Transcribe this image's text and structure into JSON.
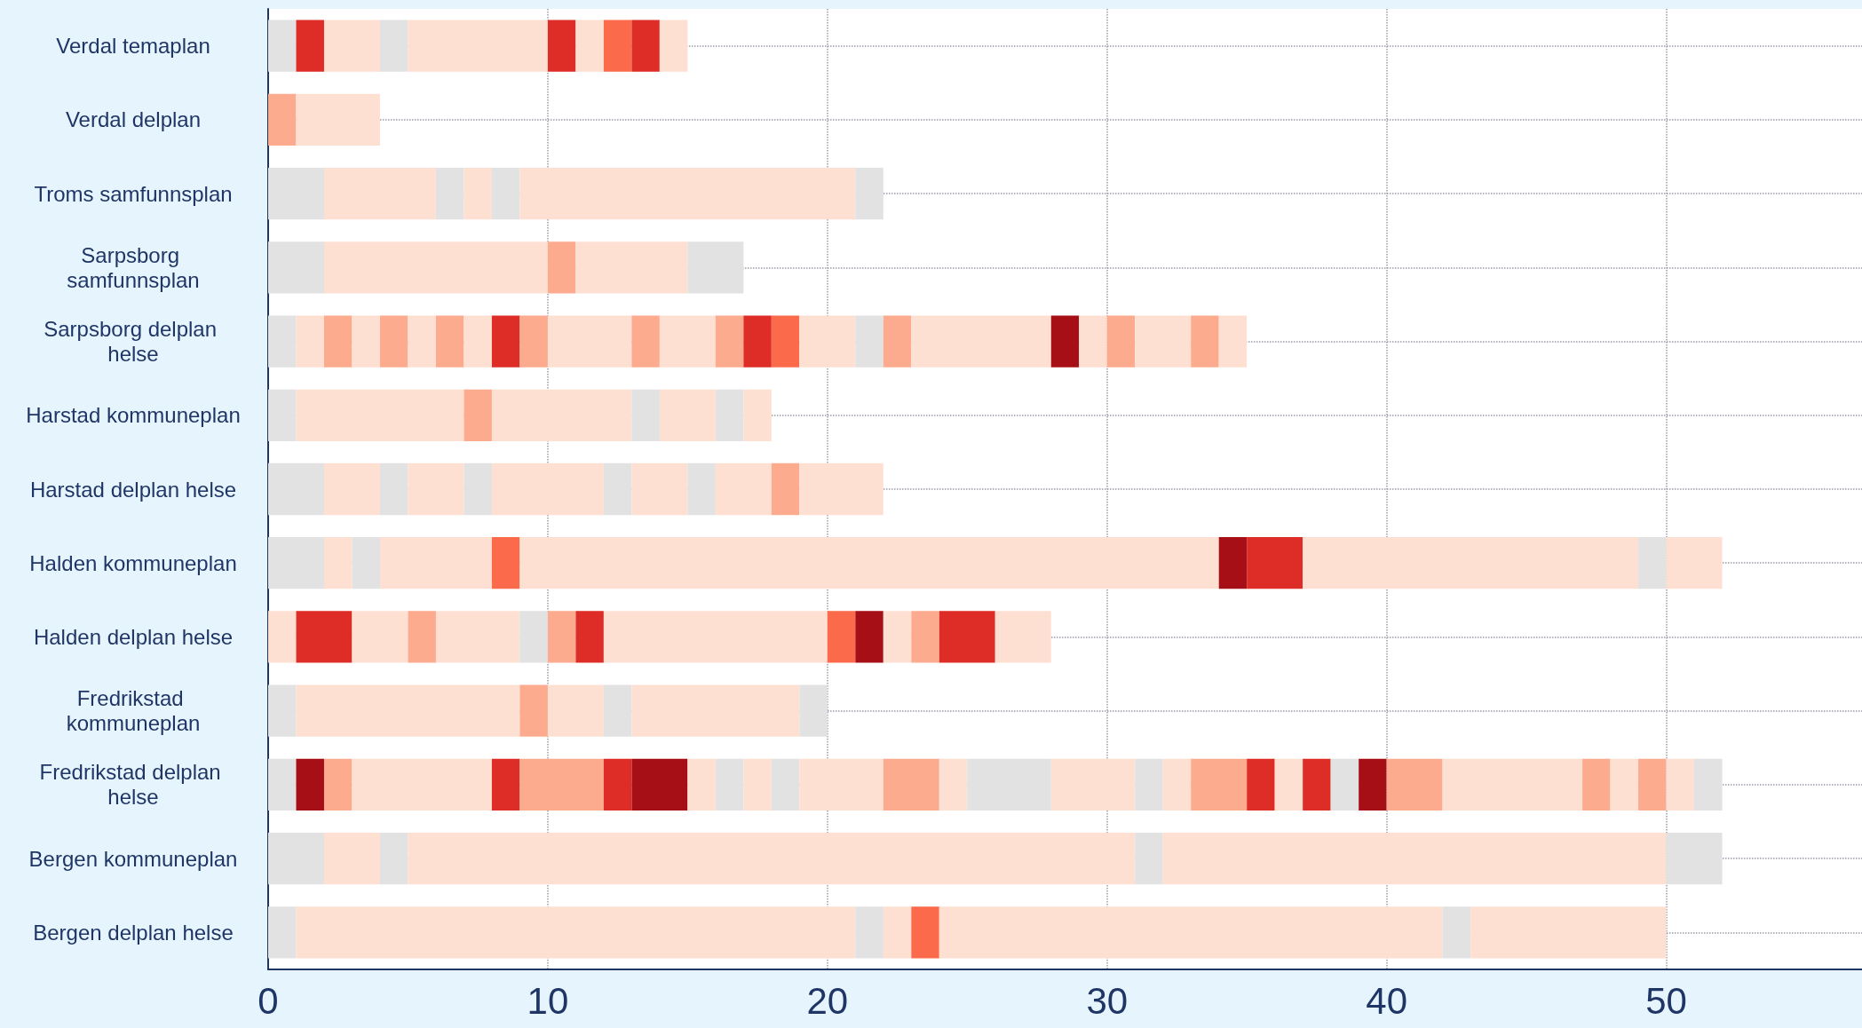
{
  "chart_data": {
    "type": "bar",
    "orientation": "horizontal",
    "stacked": true,
    "grid": true,
    "categories": [
      "Verdal temaplan",
      "Verdal delplan",
      "Troms samfunnsplan",
      "Sarpsborg samfunnsplan",
      "Sarpsborg delplan helse",
      "Harstad kommuneplan",
      "Harstad delplan helse",
      "Halden kommuneplan",
      "Halden delplan helse",
      "Fredrikstad kommuneplan",
      "Fredrikstad delplan helse",
      "Bergen kommuneplan",
      "Bergen delplan helse"
    ],
    "xlim": [
      0,
      57
    ],
    "xticks": [
      0,
      10,
      20,
      30,
      40,
      50
    ],
    "series": [
      {
        "values": [
          1,
          1,
          2,
          2,
          1,
          1,
          2,
          2,
          1,
          1,
          1,
          2,
          1
        ],
        "colors": [
          "#e2e2e2",
          "#fcab8f",
          "#e2e2e2",
          "#e2e2e2",
          "#e2e2e2",
          "#e2e2e2",
          "#e2e2e2",
          "#e2e2e2",
          "#fee0d2",
          "#e2e2e2",
          "#e2e2e2",
          "#e2e2e2",
          "#e2e2e2"
        ]
      },
      {
        "values": [
          1,
          3,
          4,
          8,
          1,
          6,
          2,
          1,
          2,
          8,
          1,
          2,
          20
        ],
        "colors": [
          "#de2d26",
          "#fee0d2",
          "#fee0d2",
          "#fee0d2",
          "#fee0d2",
          "#fee0d2",
          "#fee0d2",
          "#fee0d2",
          "#de2d26",
          "#fee0d2",
          "#a50f15",
          "#fee0d2",
          "#fee0d2"
        ]
      },
      {
        "values": [
          2,
          null,
          1,
          1,
          1,
          1,
          1,
          1,
          2,
          1,
          1,
          1,
          1
        ],
        "colors": [
          "#fee0d2",
          null,
          "#e2e2e2",
          "#fcab8f",
          "#fcab8f",
          "#fcab8f",
          "#e2e2e2",
          "#e2e2e2",
          "#fee0d2",
          "#fcab8f",
          "#fcab8f",
          "#e2e2e2",
          "#e2e2e2"
        ]
      },
      {
        "values": [
          1,
          null,
          1,
          4,
          1,
          5,
          2,
          4,
          1,
          2,
          5,
          26,
          1
        ],
        "colors": [
          "#e2e2e2",
          null,
          "#fee0d2",
          "#fee0d2",
          "#fee0d2",
          "#fee0d2",
          "#fee0d2",
          "#fee0d2",
          "#fcab8f",
          "#fee0d2",
          "#fee0d2",
          "#fee0d2",
          "#fee0d2"
        ]
      },
      {
        "values": [
          5,
          null,
          1,
          2,
          1,
          1,
          1,
          1,
          3,
          1,
          1,
          1,
          1
        ],
        "colors": [
          "#fee0d2",
          null,
          "#e2e2e2",
          "#e2e2e2",
          "#fcab8f",
          "#e2e2e2",
          "#e2e2e2",
          "#fb6a4a",
          "#fee0d2",
          "#e2e2e2",
          "#de2d26",
          "#e2e2e2",
          "#fb6a4a"
        ]
      },
      {
        "values": [
          1,
          null,
          12,
          null,
          1,
          2,
          4,
          25,
          1,
          6,
          3,
          18,
          18
        ],
        "colors": [
          "#de2d26",
          null,
          "#fee0d2",
          null,
          "#fee0d2",
          "#fee0d2",
          "#fee0d2",
          "#fee0d2",
          "#e2e2e2",
          "#fee0d2",
          "#fcab8f",
          "#fee0d2",
          "#fee0d2"
        ]
      },
      {
        "values": [
          1,
          null,
          1,
          null,
          1,
          1,
          1,
          1,
          1,
          1,
          1,
          2,
          1
        ],
        "colors": [
          "#fee0d2",
          null,
          "#e2e2e2",
          null,
          "#fcab8f",
          "#e2e2e2",
          "#e2e2e2",
          "#a50f15",
          "#fcab8f",
          "#e2e2e2",
          "#de2d26",
          "#e2e2e2",
          "#e2e2e2"
        ]
      },
      {
        "values": [
          1,
          null,
          null,
          null,
          1,
          1,
          2,
          2,
          1,
          null,
          2,
          null,
          7
        ],
        "colors": [
          "#fb6a4a",
          null,
          null,
          null,
          "#fee0d2",
          "#fee0d2",
          "#fee0d2",
          "#de2d26",
          "#de2d26",
          null,
          "#a50f15",
          null,
          "#fee0d2"
        ]
      },
      {
        "values": [
          1,
          null,
          null,
          null,
          1,
          null,
          1,
          12,
          8,
          null,
          1,
          null,
          null
        ],
        "colors": [
          "#de2d26",
          null,
          null,
          null,
          "#de2d26",
          null,
          "#e2e2e2",
          "#fee0d2",
          "#fee0d2",
          null,
          "#fee0d2",
          null,
          null
        ]
      },
      {
        "values": [
          1,
          null,
          null,
          null,
          1,
          null,
          2,
          1,
          1,
          null,
          1,
          null,
          null
        ],
        "colors": [
          "#fee0d2",
          null,
          null,
          null,
          "#fcab8f",
          null,
          "#fee0d2",
          "#e2e2e2",
          "#fb6a4a",
          null,
          "#e2e2e2",
          null,
          null
        ]
      },
      {
        "values": [
          null,
          null,
          null,
          null,
          3,
          null,
          1,
          2,
          1,
          null,
          1,
          null,
          null
        ],
        "colors": [
          null,
          null,
          null,
          null,
          "#fee0d2",
          null,
          "#fcab8f",
          "#fee0d2",
          "#a50f15",
          null,
          "#fee0d2",
          null,
          null
        ]
      },
      {
        "values": [
          null,
          null,
          null,
          null,
          1,
          null,
          3,
          null,
          1,
          null,
          1,
          null,
          null
        ],
        "colors": [
          null,
          null,
          null,
          null,
          "#fcab8f",
          null,
          "#fee0d2",
          null,
          "#fee0d2",
          null,
          "#e2e2e2",
          null,
          null
        ]
      },
      {
        "values": [
          null,
          null,
          null,
          null,
          2,
          null,
          null,
          null,
          1,
          null,
          3,
          null,
          null
        ],
        "colors": [
          null,
          null,
          null,
          null,
          "#fee0d2",
          null,
          null,
          null,
          "#fcab8f",
          null,
          "#fee0d2",
          null,
          null
        ]
      },
      {
        "values": [
          null,
          null,
          null,
          null,
          1,
          null,
          null,
          null,
          2,
          null,
          2,
          null,
          null
        ],
        "colors": [
          null,
          null,
          null,
          null,
          "#fcab8f",
          null,
          null,
          null,
          "#de2d26",
          null,
          "#fcab8f",
          null,
          null
        ]
      },
      {
        "values": [
          null,
          null,
          null,
          null,
          1,
          null,
          null,
          null,
          2,
          null,
          1,
          null,
          null
        ],
        "colors": [
          null,
          null,
          null,
          null,
          "#de2d26",
          null,
          null,
          null,
          "#fee0d2",
          null,
          "#fee0d2",
          null,
          null
        ]
      },
      {
        "values": [
          null,
          null,
          null,
          null,
          1,
          null,
          null,
          null,
          null,
          null,
          3,
          null,
          null
        ],
        "colors": [
          null,
          null,
          null,
          null,
          "#fb6a4a",
          null,
          null,
          null,
          null,
          null,
          "#e2e2e2",
          null,
          null
        ]
      },
      {
        "values": [
          null,
          null,
          null,
          null,
          2,
          null,
          null,
          null,
          null,
          null,
          3,
          null,
          null
        ],
        "colors": [
          null,
          null,
          null,
          null,
          "#fee0d2",
          null,
          null,
          null,
          null,
          null,
          "#fee0d2",
          null,
          null
        ]
      },
      {
        "values": [
          null,
          null,
          null,
          null,
          1,
          null,
          null,
          null,
          null,
          null,
          1,
          null,
          null
        ],
        "colors": [
          null,
          null,
          null,
          null,
          "#e2e2e2",
          null,
          null,
          null,
          null,
          null,
          "#e2e2e2",
          null,
          null
        ]
      },
      {
        "values": [
          null,
          null,
          null,
          null,
          1,
          null,
          null,
          null,
          null,
          null,
          1,
          null,
          null
        ],
        "colors": [
          null,
          null,
          null,
          null,
          "#fcab8f",
          null,
          null,
          null,
          null,
          null,
          "#fee0d2",
          null,
          null
        ]
      },
      {
        "values": [
          null,
          null,
          null,
          null,
          5,
          null,
          null,
          null,
          null,
          null,
          2,
          null,
          null
        ],
        "colors": [
          null,
          null,
          null,
          null,
          "#fee0d2",
          null,
          null,
          null,
          null,
          null,
          "#fcab8f",
          null,
          null
        ]
      },
      {
        "values": [
          null,
          null,
          null,
          null,
          1,
          null,
          null,
          null,
          null,
          null,
          1,
          null,
          null
        ],
        "colors": [
          null,
          null,
          null,
          null,
          "#a50f15",
          null,
          null,
          null,
          null,
          null,
          "#de2d26",
          null,
          null
        ]
      },
      {
        "values": [
          null,
          null,
          null,
          null,
          1,
          null,
          null,
          null,
          null,
          null,
          1,
          null,
          null
        ],
        "colors": [
          null,
          null,
          null,
          null,
          "#fee0d2",
          null,
          null,
          null,
          null,
          null,
          "#fee0d2",
          null,
          null
        ]
      },
      {
        "values": [
          null,
          null,
          null,
          null,
          1,
          null,
          null,
          null,
          null,
          null,
          1,
          null,
          null
        ],
        "colors": [
          null,
          null,
          null,
          null,
          "#fcab8f",
          null,
          null,
          null,
          null,
          null,
          "#de2d26",
          null,
          null
        ]
      },
      {
        "values": [
          null,
          null,
          null,
          null,
          2,
          null,
          null,
          null,
          null,
          null,
          1,
          null,
          null
        ],
        "colors": [
          null,
          null,
          null,
          null,
          "#fee0d2",
          null,
          null,
          null,
          null,
          null,
          "#e2e2e2",
          null,
          null
        ]
      },
      {
        "values": [
          null,
          null,
          null,
          null,
          1,
          null,
          null,
          null,
          null,
          null,
          1,
          null,
          null
        ],
        "colors": [
          null,
          null,
          null,
          null,
          "#fcab8f",
          null,
          null,
          null,
          null,
          null,
          "#a50f15",
          null,
          null
        ]
      },
      {
        "values": [
          null,
          null,
          null,
          null,
          1,
          null,
          null,
          null,
          null,
          null,
          2,
          null,
          null
        ],
        "colors": [
          null,
          null,
          null,
          null,
          "#fee0d2",
          null,
          null,
          null,
          null,
          null,
          "#fcab8f",
          null,
          null
        ]
      },
      {
        "values": [
          null,
          null,
          null,
          null,
          null,
          null,
          null,
          null,
          null,
          null,
          5,
          null,
          null
        ],
        "colors": [
          null,
          null,
          null,
          null,
          null,
          null,
          null,
          null,
          null,
          null,
          "#fee0d2",
          null,
          null
        ]
      },
      {
        "values": [
          null,
          null,
          null,
          null,
          null,
          null,
          null,
          null,
          null,
          null,
          1,
          null,
          null
        ],
        "colors": [
          null,
          null,
          null,
          null,
          null,
          null,
          null,
          null,
          null,
          null,
          "#fcab8f",
          null,
          null
        ]
      },
      {
        "values": [
          null,
          null,
          null,
          null,
          null,
          null,
          null,
          null,
          null,
          null,
          1,
          null,
          null
        ],
        "colors": [
          null,
          null,
          null,
          null,
          null,
          null,
          null,
          null,
          null,
          null,
          "#fee0d2",
          null,
          null
        ]
      },
      {
        "values": [
          null,
          null,
          null,
          null,
          null,
          null,
          null,
          null,
          null,
          null,
          1,
          null,
          null
        ],
        "colors": [
          null,
          null,
          null,
          null,
          null,
          null,
          null,
          null,
          null,
          null,
          "#fcab8f",
          null,
          null
        ]
      },
      {
        "values": [
          null,
          null,
          null,
          null,
          null,
          null,
          null,
          null,
          null,
          null,
          1,
          null,
          null
        ],
        "colors": [
          null,
          null,
          null,
          null,
          null,
          null,
          null,
          null,
          null,
          null,
          "#fee0d2",
          null,
          null
        ]
      },
      {
        "values": [
          null,
          null,
          null,
          null,
          null,
          null,
          null,
          null,
          null,
          null,
          1,
          null,
          null
        ],
        "colors": [
          null,
          null,
          null,
          null,
          null,
          null,
          null,
          null,
          null,
          null,
          "#e2e2e2",
          null,
          null
        ]
      }
    ]
  }
}
